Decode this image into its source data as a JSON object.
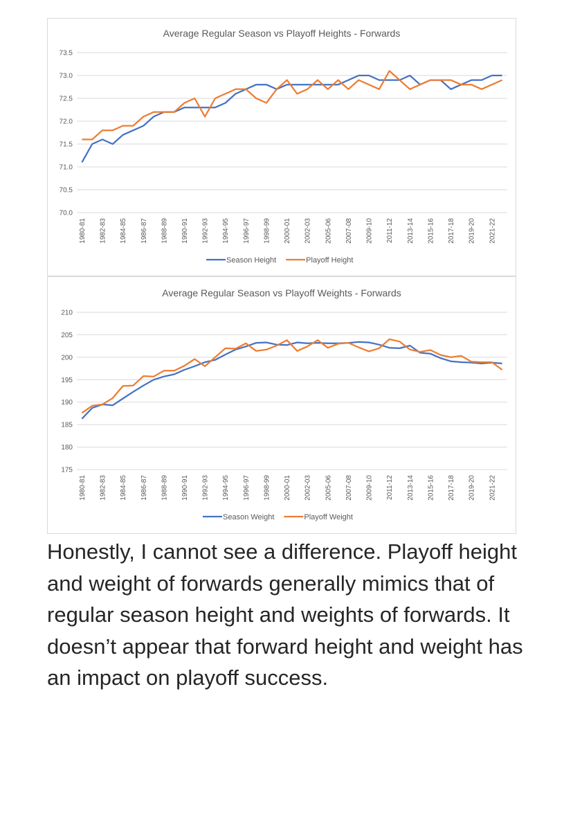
{
  "colors": {
    "season": "#4472c4",
    "playoff": "#ed7d31",
    "grid": "#d9d9d9",
    "text": "#595959"
  },
  "chart_data": [
    {
      "type": "line",
      "title": "Average Regular Season vs Playoff Heights - Forwards",
      "xlabel": "",
      "ylabel": "",
      "ylim": [
        70.0,
        73.5
      ],
      "yticks": [
        "73.5",
        "73.0",
        "72.5",
        "72.0",
        "71.5",
        "71.0",
        "70.5",
        "70.0"
      ],
      "grid": true,
      "legend_position": "bottom",
      "x": [
        "1980-81",
        "1981-82",
        "1982-83",
        "1983-84",
        "1984-85",
        "1985-86",
        "1986-87",
        "1987-88",
        "1988-89",
        "1989-90",
        "1990-91",
        "1991-92",
        "1992-93",
        "1993-94",
        "1994-95",
        "1995-96",
        "1996-97",
        "1997-98",
        "1998-99",
        "1999-00",
        "2000-01",
        "2001-02",
        "2002-03",
        "2003-04",
        "2005-06",
        "2006-07",
        "2007-08",
        "2008-09",
        "2009-10",
        "2010-11",
        "2011-12",
        "2012-13",
        "2013-14",
        "2014-15",
        "2015-16",
        "2016-17",
        "2017-18",
        "2018-19",
        "2019-20",
        "2020-21",
        "2021-22",
        "2022-23"
      ],
      "xtick_labels": [
        "1980-81",
        "1982-83",
        "1984-85",
        "1986-87",
        "1988-89",
        "1990-91",
        "1992-93",
        "1994-95",
        "1996-97",
        "1998-99",
        "2000-01",
        "2002-03",
        "2005-06",
        "2007-08",
        "2009-10",
        "2011-12",
        "2013-14",
        "2015-16",
        "2017-18",
        "2019-20",
        "2021-22"
      ],
      "series": [
        {
          "name": "Season Height",
          "values": [
            71.1,
            71.5,
            71.6,
            71.5,
            71.7,
            71.8,
            71.9,
            72.1,
            72.2,
            72.2,
            72.3,
            72.3,
            72.3,
            72.3,
            72.4,
            72.6,
            72.7,
            72.8,
            72.8,
            72.7,
            72.8,
            72.8,
            72.8,
            72.8,
            72.8,
            72.8,
            72.9,
            73.0,
            73.0,
            72.9,
            72.9,
            72.9,
            73.0,
            72.8,
            72.9,
            72.9,
            72.7,
            72.8,
            72.9,
            72.9,
            73.0,
            73.0
          ]
        },
        {
          "name": "Playoff Height",
          "values": [
            71.6,
            71.6,
            71.8,
            71.8,
            71.9,
            71.9,
            72.1,
            72.2,
            72.2,
            72.2,
            72.4,
            72.5,
            72.1,
            72.5,
            72.6,
            72.7,
            72.7,
            72.5,
            72.4,
            72.7,
            72.9,
            72.6,
            72.7,
            72.9,
            72.7,
            72.9,
            72.7,
            72.9,
            72.8,
            72.7,
            73.1,
            72.9,
            72.7,
            72.8,
            72.9,
            72.9,
            72.9,
            72.8,
            72.8,
            72.7,
            72.8,
            72.9
          ]
        }
      ]
    },
    {
      "type": "line",
      "title": "Average Regular Season vs Playoff Weights - Forwards",
      "xlabel": "",
      "ylabel": "",
      "ylim": [
        175,
        210
      ],
      "yticks": [
        "210",
        "205",
        "200",
        "195",
        "190",
        "185",
        "180",
        "175"
      ],
      "grid": true,
      "legend_position": "bottom",
      "x": [
        "1980-81",
        "1981-82",
        "1982-83",
        "1983-84",
        "1984-85",
        "1985-86",
        "1986-87",
        "1987-88",
        "1988-89",
        "1989-90",
        "1990-91",
        "1991-92",
        "1992-93",
        "1993-94",
        "1994-95",
        "1995-96",
        "1996-97",
        "1997-98",
        "1998-99",
        "1999-00",
        "2000-01",
        "2001-02",
        "2002-03",
        "2003-04",
        "2005-06",
        "2006-07",
        "2007-08",
        "2008-09",
        "2009-10",
        "2010-11",
        "2011-12",
        "2012-13",
        "2013-14",
        "2014-15",
        "2015-16",
        "2016-17",
        "2017-18",
        "2018-19",
        "2019-20",
        "2020-21",
        "2021-22",
        "2022-23"
      ],
      "xtick_labels": [
        "1980-81",
        "1982-83",
        "1984-85",
        "1986-87",
        "1988-89",
        "1990-91",
        "1992-93",
        "1994-95",
        "1996-97",
        "1998-99",
        "2000-01",
        "2002-03",
        "2005-06",
        "2007-08",
        "2009-10",
        "2011-12",
        "2013-14",
        "2015-16",
        "2017-18",
        "2019-20",
        "2021-22"
      ],
      "series": [
        {
          "name": "Season Weight",
          "values": [
            186.3,
            188.7,
            189.5,
            189.3,
            190.8,
            192.3,
            193.7,
            195.0,
            195.7,
            196.2,
            197.2,
            198.0,
            198.9,
            199.4,
            200.6,
            201.7,
            202.4,
            203.2,
            203.3,
            202.8,
            202.7,
            203.3,
            203.1,
            203.2,
            203.1,
            203.1,
            203.2,
            203.4,
            203.3,
            202.8,
            202.1,
            202.0,
            202.6,
            201.0,
            200.8,
            199.8,
            199.1,
            198.9,
            198.8,
            198.6,
            198.8,
            198.6
          ]
        },
        {
          "name": "Playoff Weight",
          "values": [
            187.6,
            189.2,
            189.5,
            190.9,
            193.6,
            193.7,
            195.8,
            195.7,
            197.0,
            197.0,
            198.1,
            199.6,
            198.0,
            200.0,
            202.0,
            201.9,
            203.1,
            201.4,
            201.7,
            202.6,
            203.8,
            201.4,
            202.4,
            203.8,
            202.1,
            203.0,
            203.2,
            202.2,
            201.3,
            202.0,
            204.0,
            203.5,
            201.7,
            201.2,
            201.6,
            200.5,
            200.0,
            200.3,
            199.0,
            198.9,
            198.9,
            197.2
          ]
        }
      ]
    }
  ],
  "caption": "Honestly, I cannot see a difference. Playoff height and weight of forwards generally mimics that of regular season height and weights of forwards. It doesn’t appear that forward height and weight has an impact on playoff success."
}
